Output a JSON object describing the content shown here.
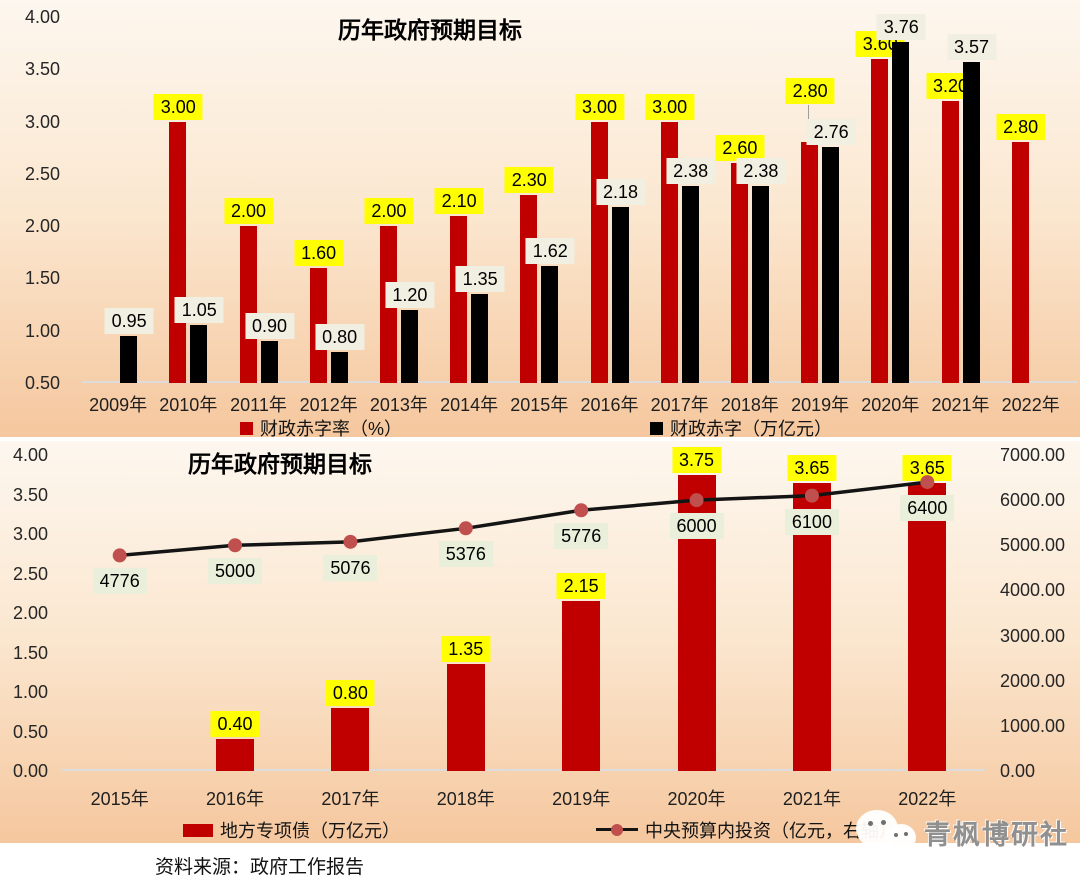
{
  "page": {
    "source_note": "资料来源：政府工作报告",
    "watermark": "青枫博研社",
    "colors": {
      "bar_red": "#c00000",
      "bar_black": "#000000",
      "label_yellow_bg": "#ffff00",
      "label_cream_bg": "#f1efe1",
      "label_green_bg": "#e9efdb",
      "line_color": "#141414",
      "marker_red": "#c0504d",
      "axis_line": "#dcdcdc",
      "chart_bg_top": "#fdf7ef",
      "chart_bg_bottom": "#f5c79e"
    }
  },
  "chart_data": [
    {
      "type": "bar",
      "title": "历年政府预期目标",
      "categories": [
        "2009年",
        "2010年",
        "2011年",
        "2012年",
        "2013年",
        "2014年",
        "2015年",
        "2016年",
        "2017年",
        "2018年",
        "2019年",
        "2020年",
        "2021年",
        "2022年"
      ],
      "series": [
        {
          "name": "财政赤字率（%）",
          "color": "#c00000",
          "values": [
            null,
            3.0,
            2.0,
            1.6,
            2.0,
            2.1,
            2.3,
            3.0,
            3.0,
            2.6,
            2.8,
            3.6,
            3.2,
            2.8
          ]
        },
        {
          "name": "财政赤字（万亿元）",
          "color": "#000000",
          "values": [
            0.95,
            1.05,
            0.9,
            0.8,
            1.2,
            1.35,
            1.62,
            2.18,
            2.38,
            2.38,
            2.76,
            3.76,
            3.57,
            null
          ]
        }
      ],
      "ylim": [
        0.5,
        4.0
      ],
      "yticks": [
        "4.00",
        "3.50",
        "3.00",
        "2.50",
        "2.00",
        "1.50",
        "1.00",
        "0.50"
      ],
      "grid": false,
      "legend_position": "bottom",
      "data_labels": "all points, 2 decimals"
    },
    {
      "type": "combo-bar-line",
      "title": "历年政府预期目标",
      "categories": [
        "2015年",
        "2016年",
        "2017年",
        "2018年",
        "2019年",
        "2020年",
        "2021年",
        "2022年"
      ],
      "bar_series": {
        "name": "地方专项债（万亿元）",
        "color": "#c00000",
        "axis": "left",
        "values": [
          null,
          0.4,
          0.8,
          1.35,
          2.15,
          3.75,
          3.65,
          3.65
        ]
      },
      "line_series": {
        "name": "中央预算内投资（亿元，右轴）",
        "line_color": "#141414",
        "marker_color": "#c0504d",
        "axis": "right",
        "values": [
          4776,
          5000,
          5076,
          5376,
          5776,
          6000,
          6100,
          6400
        ]
      },
      "left_ylim": [
        0.0,
        4.0
      ],
      "left_yticks": [
        "4.00",
        "3.50",
        "3.00",
        "2.50",
        "2.00",
        "1.50",
        "1.00",
        "0.50",
        "0.00"
      ],
      "right_ylim": [
        0,
        7000
      ],
      "right_yticks": [
        "7000.00",
        "6000.00",
        "5000.00",
        "4000.00",
        "3000.00",
        "2000.00",
        "1000.00",
        "0.00"
      ],
      "grid": false,
      "legend_position": "bottom",
      "data_labels": "bars 2 decimals, line integers"
    }
  ]
}
